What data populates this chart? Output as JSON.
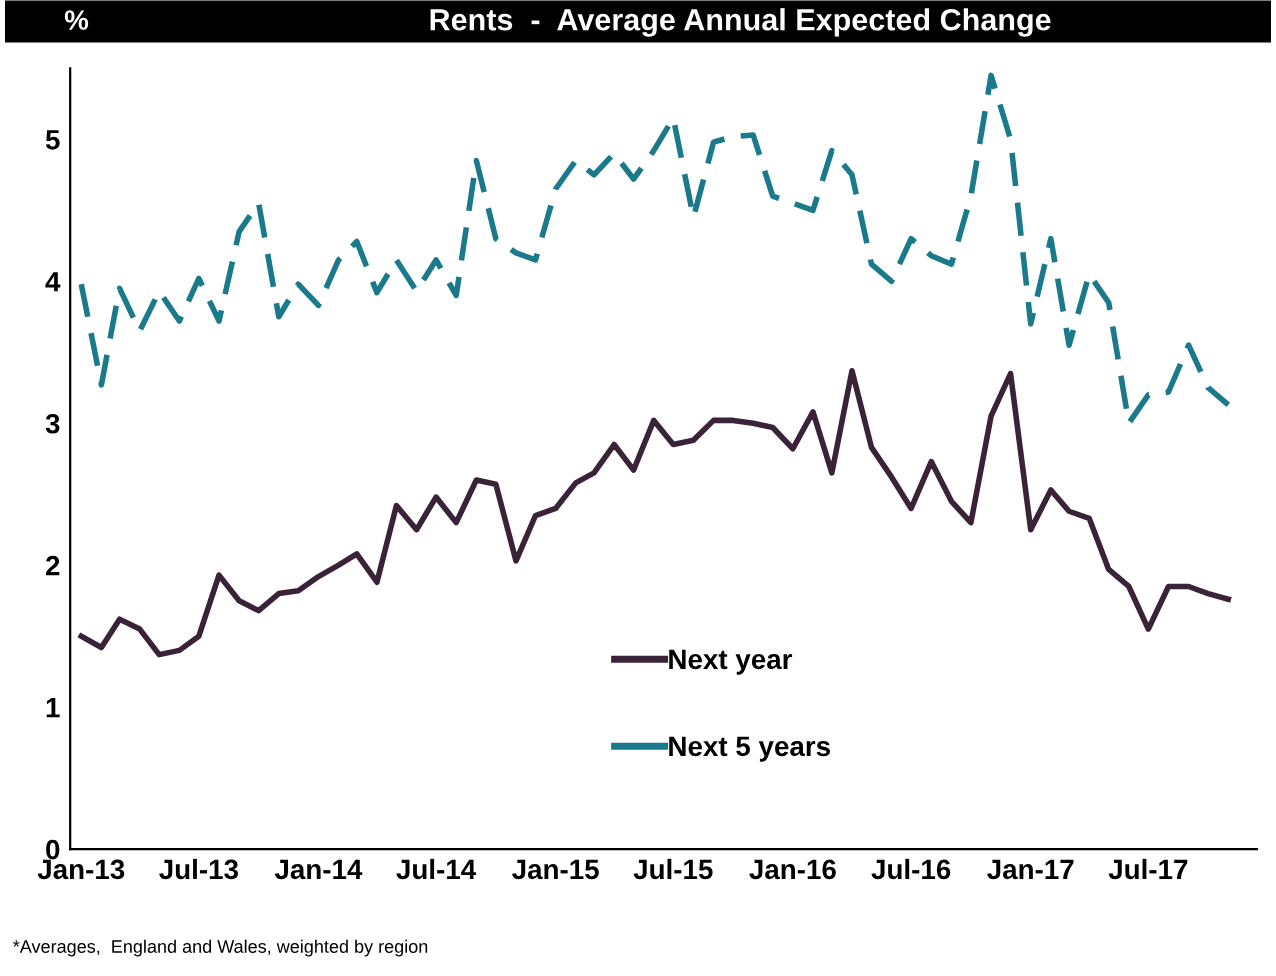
{
  "chart_data": {
    "type": "line",
    "title": "Rents  -  Average Annual Expected Change",
    "ylabel": "%",
    "x": [
      "2013-01",
      "2013-02",
      "2013-03",
      "2013-04",
      "2013-05",
      "2013-06",
      "2013-07",
      "2013-08",
      "2013-09",
      "2013-10",
      "2013-11",
      "2013-12",
      "2014-01",
      "2014-02",
      "2014-03",
      "2014-04",
      "2014-05",
      "2014-06",
      "2014-07",
      "2014-08",
      "2014-09",
      "2014-10",
      "2014-11",
      "2014-12",
      "2015-01",
      "2015-02",
      "2015-03",
      "2015-04",
      "2015-05",
      "2015-06",
      "2015-07",
      "2015-08",
      "2015-09",
      "2015-10",
      "2015-11",
      "2015-12",
      "2016-01",
      "2016-02",
      "2016-03",
      "2016-04",
      "2016-05",
      "2016-06",
      "2016-07",
      "2016-08",
      "2016-09",
      "2016-10",
      "2016-11",
      "2016-12",
      "2017-01",
      "2017-02",
      "2017-03",
      "2017-04",
      "2017-05",
      "2017-06",
      "2017-07",
      "2017-08",
      "2017-09",
      "2017-10",
      "2017-11"
    ],
    "series": [
      {
        "name": "Next year",
        "color": "#3a2238",
        "line_style": "solid",
        "values": [
          1.5,
          1.42,
          1.62,
          1.55,
          1.37,
          1.4,
          1.5,
          1.93,
          1.75,
          1.68,
          1.8,
          1.82,
          1.92,
          2.0,
          2.08,
          1.88,
          2.42,
          2.25,
          2.48,
          2.3,
          2.6,
          2.57,
          2.03,
          2.35,
          2.4,
          2.58,
          2.65,
          2.85,
          2.67,
          3.02,
          2.85,
          2.88,
          3.02,
          3.02,
          3.0,
          2.97,
          2.82,
          3.08,
          2.65,
          3.37,
          2.83,
          2.62,
          2.4,
          2.73,
          2.45,
          2.3,
          3.05,
          3.35,
          2.25,
          2.53,
          2.38,
          2.33,
          1.97,
          1.85,
          1.55,
          1.85,
          1.85,
          1.8,
          1.76
        ]
      },
      {
        "name": "Next 5 years",
        "color": "#1a7a8c",
        "line_style": "dashed",
        "values": [
          3.98,
          3.27,
          3.95,
          3.65,
          3.93,
          3.72,
          4.02,
          3.72,
          4.35,
          4.55,
          3.75,
          3.98,
          3.83,
          4.15,
          4.28,
          3.92,
          4.15,
          3.93,
          4.15,
          3.9,
          4.85,
          4.3,
          4.2,
          4.15,
          4.65,
          4.85,
          4.75,
          4.9,
          4.72,
          4.92,
          5.15,
          4.45,
          4.98,
          5.02,
          5.03,
          4.6,
          4.55,
          4.5,
          4.92,
          4.75,
          4.12,
          4.0,
          4.3,
          4.18,
          4.12,
          4.6,
          5.45,
          5.0,
          3.7,
          4.3,
          3.55,
          4.05,
          3.85,
          3.0,
          3.2,
          3.22,
          3.55,
          3.25,
          3.13
        ]
      }
    ],
    "xlim": [
      "2012-12-15",
      "2017-12-15"
    ],
    "xticks": [
      {
        "value": "2013-01",
        "label": "Jan-13"
      },
      {
        "value": "2013-07",
        "label": "Jul-13"
      },
      {
        "value": "2014-01",
        "label": "Jan-14"
      },
      {
        "value": "2014-07",
        "label": "Jul-14"
      },
      {
        "value": "2015-01",
        "label": "Jan-15"
      },
      {
        "value": "2015-07",
        "label": "Jul-15"
      },
      {
        "value": "2016-01",
        "label": "Jan-16"
      },
      {
        "value": "2016-07",
        "label": "Jul-16"
      },
      {
        "value": "2017-01",
        "label": "Jan-17"
      },
      {
        "value": "2017-07",
        "label": "Jul-17"
      }
    ],
    "ylim": [
      0,
      5.5
    ],
    "yticks": [
      0,
      1,
      2,
      3,
      4,
      5
    ],
    "grid": false,
    "legend": "bottom",
    "marker": "none",
    "annotations": [
      "*Averages,  England and Wales, weighted by region"
    ]
  }
}
